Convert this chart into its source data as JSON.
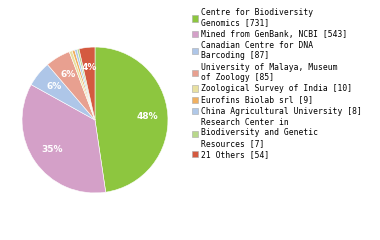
{
  "labels": [
    "Centre for Biodiversity\nGenomics [731]",
    "Mined from GenBank, NCBI [543]",
    "Canadian Centre for DNA\nBarcoding [87]",
    "University of Malaya, Museum\nof Zoology [85]",
    "Zoological Survey of India [10]",
    "Eurofins Biolab srl [9]",
    "China Agricultural University [8]",
    "Research Center in\nBiodiversity and Genetic\nResources [7]",
    "21 Others [54]"
  ],
  "values": [
    731,
    543,
    87,
    85,
    10,
    9,
    8,
    7,
    54
  ],
  "colors": [
    "#8dc63f",
    "#d4a0c8",
    "#aec6e8",
    "#e8a090",
    "#e8e0a0",
    "#f0b060",
    "#b0c8e8",
    "#b8d88b",
    "#d45a40"
  ],
  "figsize": [
    3.8,
    2.4
  ],
  "dpi": 100,
  "legend_fontsize": 5.8,
  "pct_fontsize": 6.5
}
